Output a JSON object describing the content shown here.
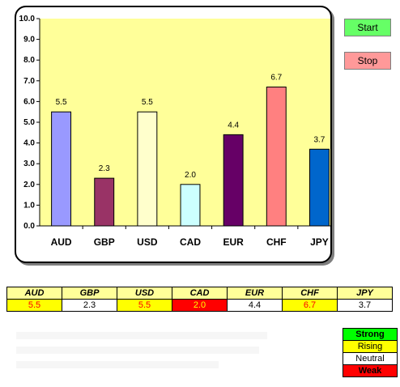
{
  "chart_data": {
    "type": "bar",
    "categories": [
      "AUD",
      "GBP",
      "USD",
      "CAD",
      "EUR",
      "CHF",
      "JPY"
    ],
    "values": [
      5.5,
      2.3,
      5.5,
      2.0,
      4.4,
      6.7,
      3.7
    ],
    "data_labels": [
      "5.5",
      "2.3",
      "5.5",
      "2.0",
      "4.4",
      "6.7",
      "3.7"
    ],
    "bar_colors": [
      "#9999ff",
      "#993366",
      "#ffffcc",
      "#ccffff",
      "#660066",
      "#ff8080",
      "#0066cc"
    ],
    "ylim": [
      0,
      10
    ],
    "yticks": [
      "0.0",
      "1.0",
      "2.0",
      "3.0",
      "4.0",
      "5.0",
      "6.0",
      "7.0",
      "8.0",
      "9.0",
      "10.0"
    ],
    "plot_background": "#ffff99",
    "grid": false,
    "legend": "none",
    "title": "",
    "xlabel": "",
    "ylabel": ""
  },
  "controls": {
    "start_label": "Start",
    "start_color": "#66ff66",
    "stop_label": "Stop",
    "stop_color": "#ff9999"
  },
  "table": {
    "headers": [
      "AUD",
      "GBP",
      "USD",
      "CAD",
      "EUR",
      "CHF",
      "JPY"
    ],
    "values": [
      "5.5",
      "2.3",
      "5.5",
      "2.0",
      "4.4",
      "6.7",
      "3.7"
    ],
    "header_bg": "#ffff99",
    "cells": [
      {
        "bg": "#ffff00",
        "fg": "#ff0000"
      },
      {
        "bg": "#ffffff",
        "fg": "#000000"
      },
      {
        "bg": "#ffff00",
        "fg": "#ff0000"
      },
      {
        "bg": "#ff0000",
        "fg": "#ffff00"
      },
      {
        "bg": "#ffffff",
        "fg": "#000000"
      },
      {
        "bg": "#ffff00",
        "fg": "#ff0000"
      },
      {
        "bg": "#ffffff",
        "fg": "#000000"
      }
    ]
  },
  "status_legend": [
    {
      "label": "Strong",
      "bg": "#00ff00",
      "fg": "#000000"
    },
    {
      "label": "Rising",
      "bg": "#ffff00",
      "fg": "#000000"
    },
    {
      "label": "Neutral",
      "bg": "#ffffff",
      "fg": "#000000"
    },
    {
      "label": "Weak",
      "bg": "#ff0000",
      "fg": "#000000"
    }
  ]
}
